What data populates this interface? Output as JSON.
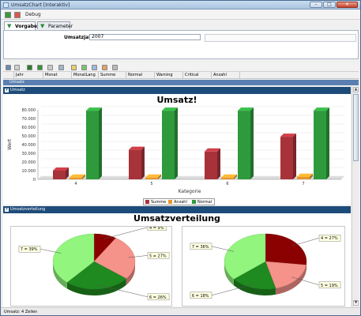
{
  "window": {
    "title": "UmsatzChart [Interaktiv]"
  },
  "toolbar": {
    "debug_label": "Debug"
  },
  "tabs": [
    {
      "label": "Vorgaben"
    },
    {
      "label": "Parameter"
    }
  ],
  "params": {
    "year_label": "Umsatzjahr",
    "year_value": "2007"
  },
  "grid": {
    "columns": [
      "Jahr",
      "Monat",
      "MonatLang",
      "Summe",
      "Normal",
      "Warning",
      "Critical",
      "Anzahl"
    ]
  },
  "sections": {
    "umsatz_bar": "Umsatz",
    "umsatz_chart": "Umsatz!",
    "verteilung_bar": "Umsatzverteilung"
  },
  "status": {
    "text": "Umsatz: 4 Zeilen"
  },
  "colors": {
    "summe": "#a8323a",
    "anzahl": "#e8962a",
    "normal": "#2e9a3c"
  },
  "chart_data": [
    {
      "type": "bar",
      "title": "Umsatz!",
      "xlabel": "Kategorie",
      "ylabel": "Wert",
      "categories": [
        "4",
        "5",
        "6",
        "7"
      ],
      "ylim": [
        0,
        80000
      ],
      "yticks": [
        "0",
        "10.000",
        "20.000",
        "30.000",
        "40.000",
        "50.000",
        "60.000",
        "70.000",
        "80.000"
      ],
      "legend": "bottom",
      "series": [
        {
          "name": "Summe",
          "values": [
            10000,
            34000,
            32000,
            49000
          ]
        },
        {
          "name": "Anzahl",
          "values": [
            2000,
            2000,
            2000,
            3000
          ]
        },
        {
          "name": "Normal",
          "values": [
            79000,
            79000,
            79000,
            79000
          ]
        }
      ]
    },
    {
      "type": "pie",
      "title": "Umsatzverteilung",
      "slices": [
        {
          "label": "4 = 9%",
          "value": 9,
          "color": "#8b0000"
        },
        {
          "label": "5 = 27%",
          "value": 27,
          "color": "#f5928a"
        },
        {
          "label": "6 = 26%",
          "value": 26,
          "color": "#1f8a1f"
        },
        {
          "label": "7 = 39%",
          "value": 39,
          "color": "#92f57e"
        }
      ]
    },
    {
      "type": "pie",
      "slices": [
        {
          "label": "4 = 27%",
          "value": 27,
          "color": "#8b0000"
        },
        {
          "label": "5 = 19%",
          "value": 19,
          "color": "#f5928a"
        },
        {
          "label": "6 = 18%",
          "value": 18,
          "color": "#1f8a1f"
        },
        {
          "label": "7 = 36%",
          "value": 36,
          "color": "#92f57e"
        }
      ]
    }
  ]
}
